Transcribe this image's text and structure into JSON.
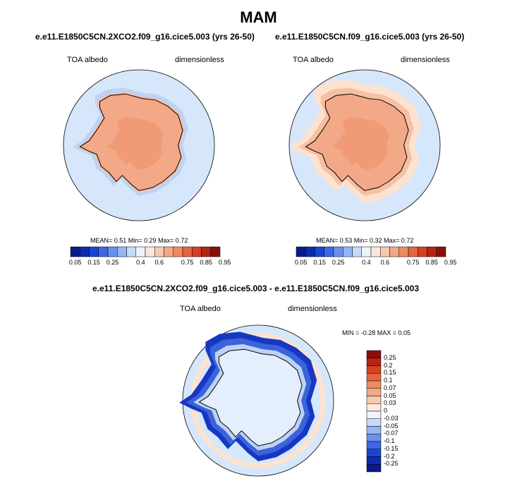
{
  "title": "MAM",
  "colors": {
    "ocean": "#d7e7fb",
    "land_high": "#f3a887",
    "land_mid": "#f7bfa3",
    "ring": "#fde2cf",
    "blue1": "#bcd3f7",
    "blue2": "#8fb0ef",
    "blue3": "#3d63d9",
    "blue4": "#1537c4",
    "blue5": "#08209e",
    "coast": "#000000"
  },
  "chart_data": [
    {
      "type": "heatmap",
      "panel": "top-left",
      "title": "e.e11.E1850C5CN.2XCO2.f09_g16.cice5.003 (yrs 26-50)",
      "left_label": "TOA albedo",
      "right_label": "dimensionless",
      "stats": {
        "mean": 0.51,
        "min": 0.29,
        "max": 0.72
      },
      "stats_text": "MEAN=  0.51  Min=  0.29  Max=  0.72",
      "colorbar_levels": [
        0.05,
        0.1,
        0.15,
        0.2,
        0.25,
        0.3,
        0.35,
        0.4,
        0.45,
        0.5,
        0.55,
        0.6,
        0.65,
        0.7,
        0.75,
        0.8,
        0.85,
        0.9,
        0.95
      ],
      "colorbar_labels": [
        "0.05",
        "0.15",
        "0.25",
        "0.4",
        "0.6",
        "0.75",
        "0.85",
        "0.95"
      ]
    },
    {
      "type": "heatmap",
      "panel": "top-right",
      "title": "e.e11.E1850C5CN.f09_g16.cice5.003 (yrs 26-50)",
      "left_label": "TOA albedo",
      "right_label": "dimensionless",
      "stats": {
        "mean": 0.53,
        "min": 0.32,
        "max": 0.72
      },
      "stats_text": "MEAN=  0.53  Min=  0.32  Max=  0.72",
      "colorbar_levels": [
        0.05,
        0.1,
        0.15,
        0.2,
        0.25,
        0.3,
        0.35,
        0.4,
        0.45,
        0.5,
        0.55,
        0.6,
        0.65,
        0.7,
        0.75,
        0.8,
        0.85,
        0.9,
        0.95
      ],
      "colorbar_labels": [
        "0.05",
        "0.15",
        "0.25",
        "0.4",
        "0.6",
        "0.75",
        "0.85",
        "0.95"
      ]
    },
    {
      "type": "heatmap",
      "panel": "bottom-difference",
      "title": "e.e11.E1850C5CN.2XCO2.f09_g16.cice5.003 - e.e11.E1850C5CN.f09_g16.cice5.003",
      "left_label": "TOA albedo",
      "right_label": "dimensionless",
      "stats": {
        "min": -0.28,
        "max": 0.05
      },
      "stats_text": "MIN =  -0.28 MAX =   0.05",
      "colorbar_levels": [
        0.25,
        0.2,
        0.15,
        0.1,
        0.07,
        0.05,
        0.03,
        0,
        -0.03,
        -0.05,
        -0.07,
        -0.1,
        -0.15,
        -0.2,
        -0.25
      ],
      "colorbar_labels": [
        "0.25",
        "0.2",
        "0.15",
        "0.1",
        "0.07",
        "0.05",
        "0.03",
        "0",
        "-0.03",
        "-0.05",
        "-0.07",
        "-0.1",
        "-0.15",
        "-0.2",
        "-0.25"
      ]
    }
  ]
}
